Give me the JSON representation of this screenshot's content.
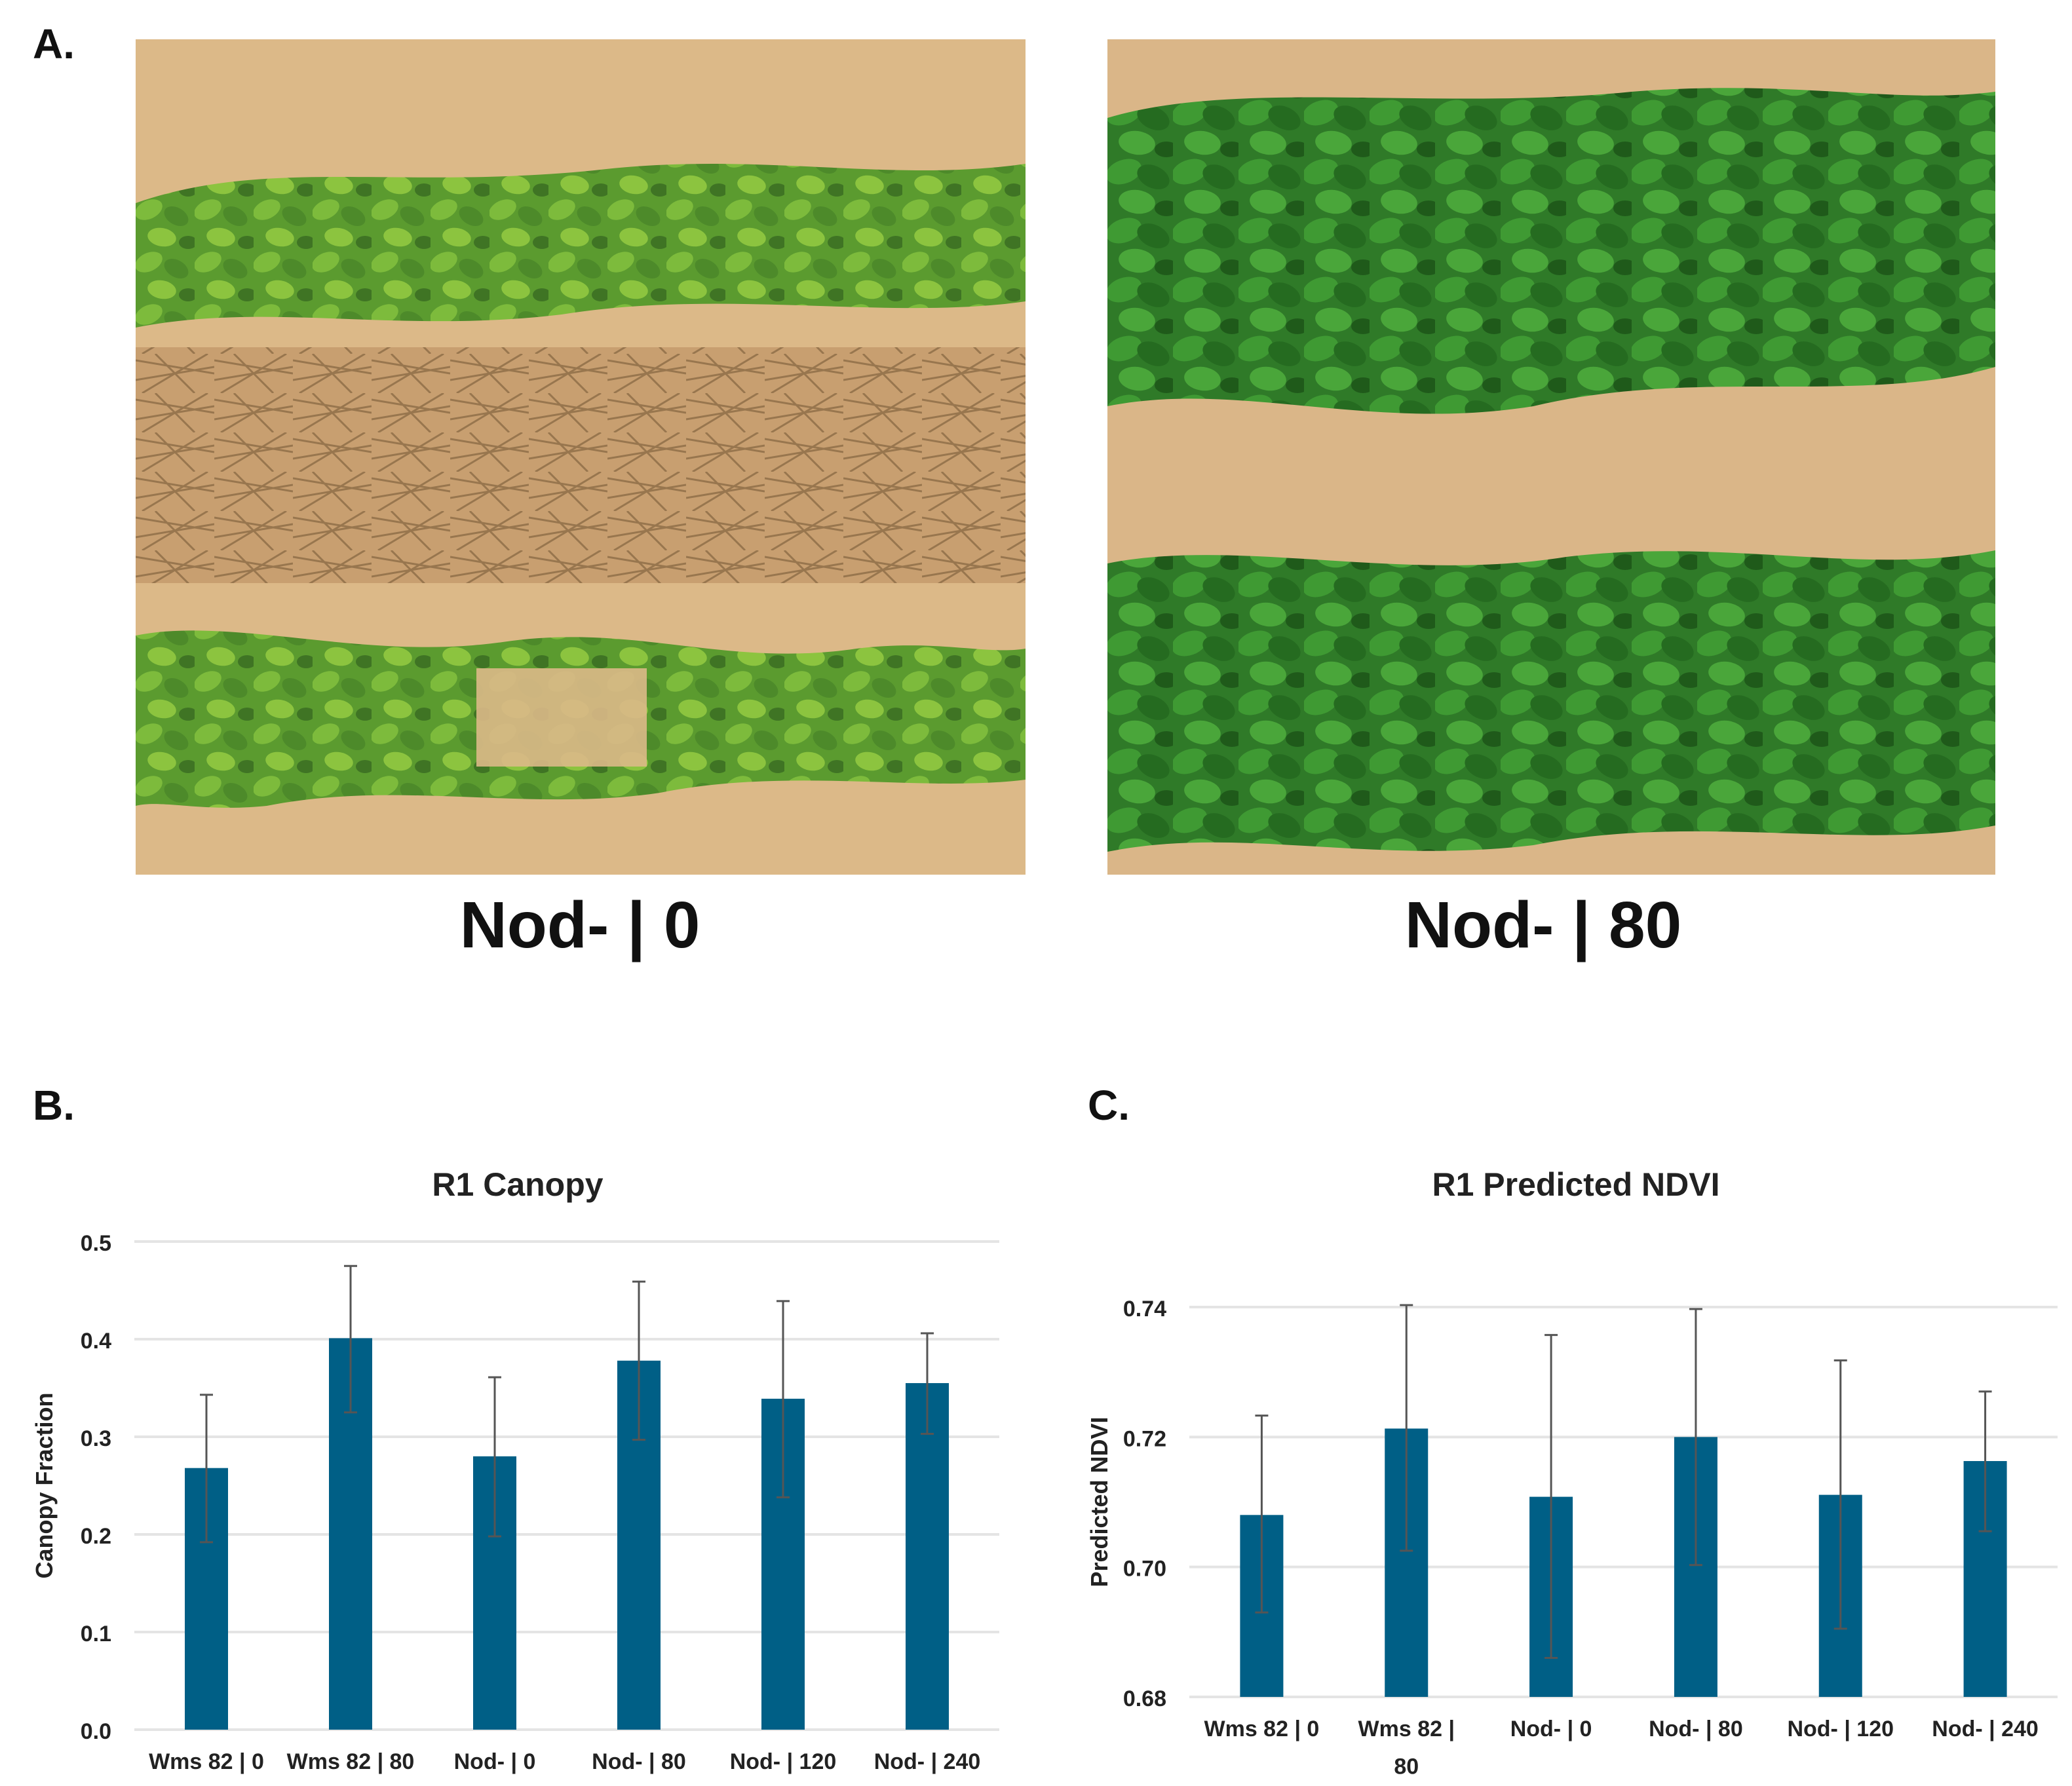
{
  "panels": {
    "a": {
      "letter": "A.",
      "left_caption": "Nod- | 0",
      "right_caption": "Nod- | 80"
    },
    "b": {
      "letter": "B."
    },
    "c": {
      "letter": "C."
    }
  },
  "colors": {
    "bar": "#005f86",
    "grid": "#e4e4e4",
    "soil": "#d8b483",
    "soil_dark": "#a9825b",
    "leaf_light": "#6fae34",
    "leaf_dark": "#2f7a28"
  },
  "chart_data": [
    {
      "type": "bar",
      "title": "R1 Canopy",
      "xlabel": "",
      "ylabel": "Canopy Fraction",
      "ylim": [
        0,
        0.5
      ],
      "yticks": [
        "0.0",
        "0.1",
        "0.2",
        "0.3",
        "0.4",
        "0.5"
      ],
      "grid": true,
      "categories": [
        "Wms 82 | 0",
        "Wms 82 | 80",
        "Nod- | 0",
        "Nod- | 80",
        "Nod- | 120",
        "Nod- | 240"
      ],
      "values": [
        0.268,
        0.401,
        0.28,
        0.378,
        0.339,
        0.355
      ],
      "error_upper": [
        0.343,
        0.475,
        0.361,
        0.459,
        0.439,
        0.406
      ],
      "error_lower": [
        0.192,
        0.325,
        0.198,
        0.297,
        0.238,
        0.303
      ]
    },
    {
      "type": "bar",
      "title": "R1 Predicted NDVI",
      "xlabel": "",
      "ylabel": "Predicted NDVI",
      "ylim": [
        0.68,
        0.74
      ],
      "yticks": [
        "0.68",
        "0.70",
        "0.72",
        "0.74"
      ],
      "grid": true,
      "categories": [
        "Wms 82 | 0",
        "Wms 82 |\n80",
        "Nod- | 0",
        "Nod- | 80",
        "Nod- | 120",
        "Nod- | 240"
      ],
      "values": [
        0.708,
        0.7213,
        0.7108,
        0.72,
        0.7111,
        0.7163
      ],
      "error_upper": [
        0.7233,
        0.7403,
        0.7357,
        0.7397,
        0.7318,
        0.727
      ],
      "error_lower": [
        0.693,
        0.7025,
        0.686,
        0.7003,
        0.6905,
        0.7055
      ]
    }
  ]
}
